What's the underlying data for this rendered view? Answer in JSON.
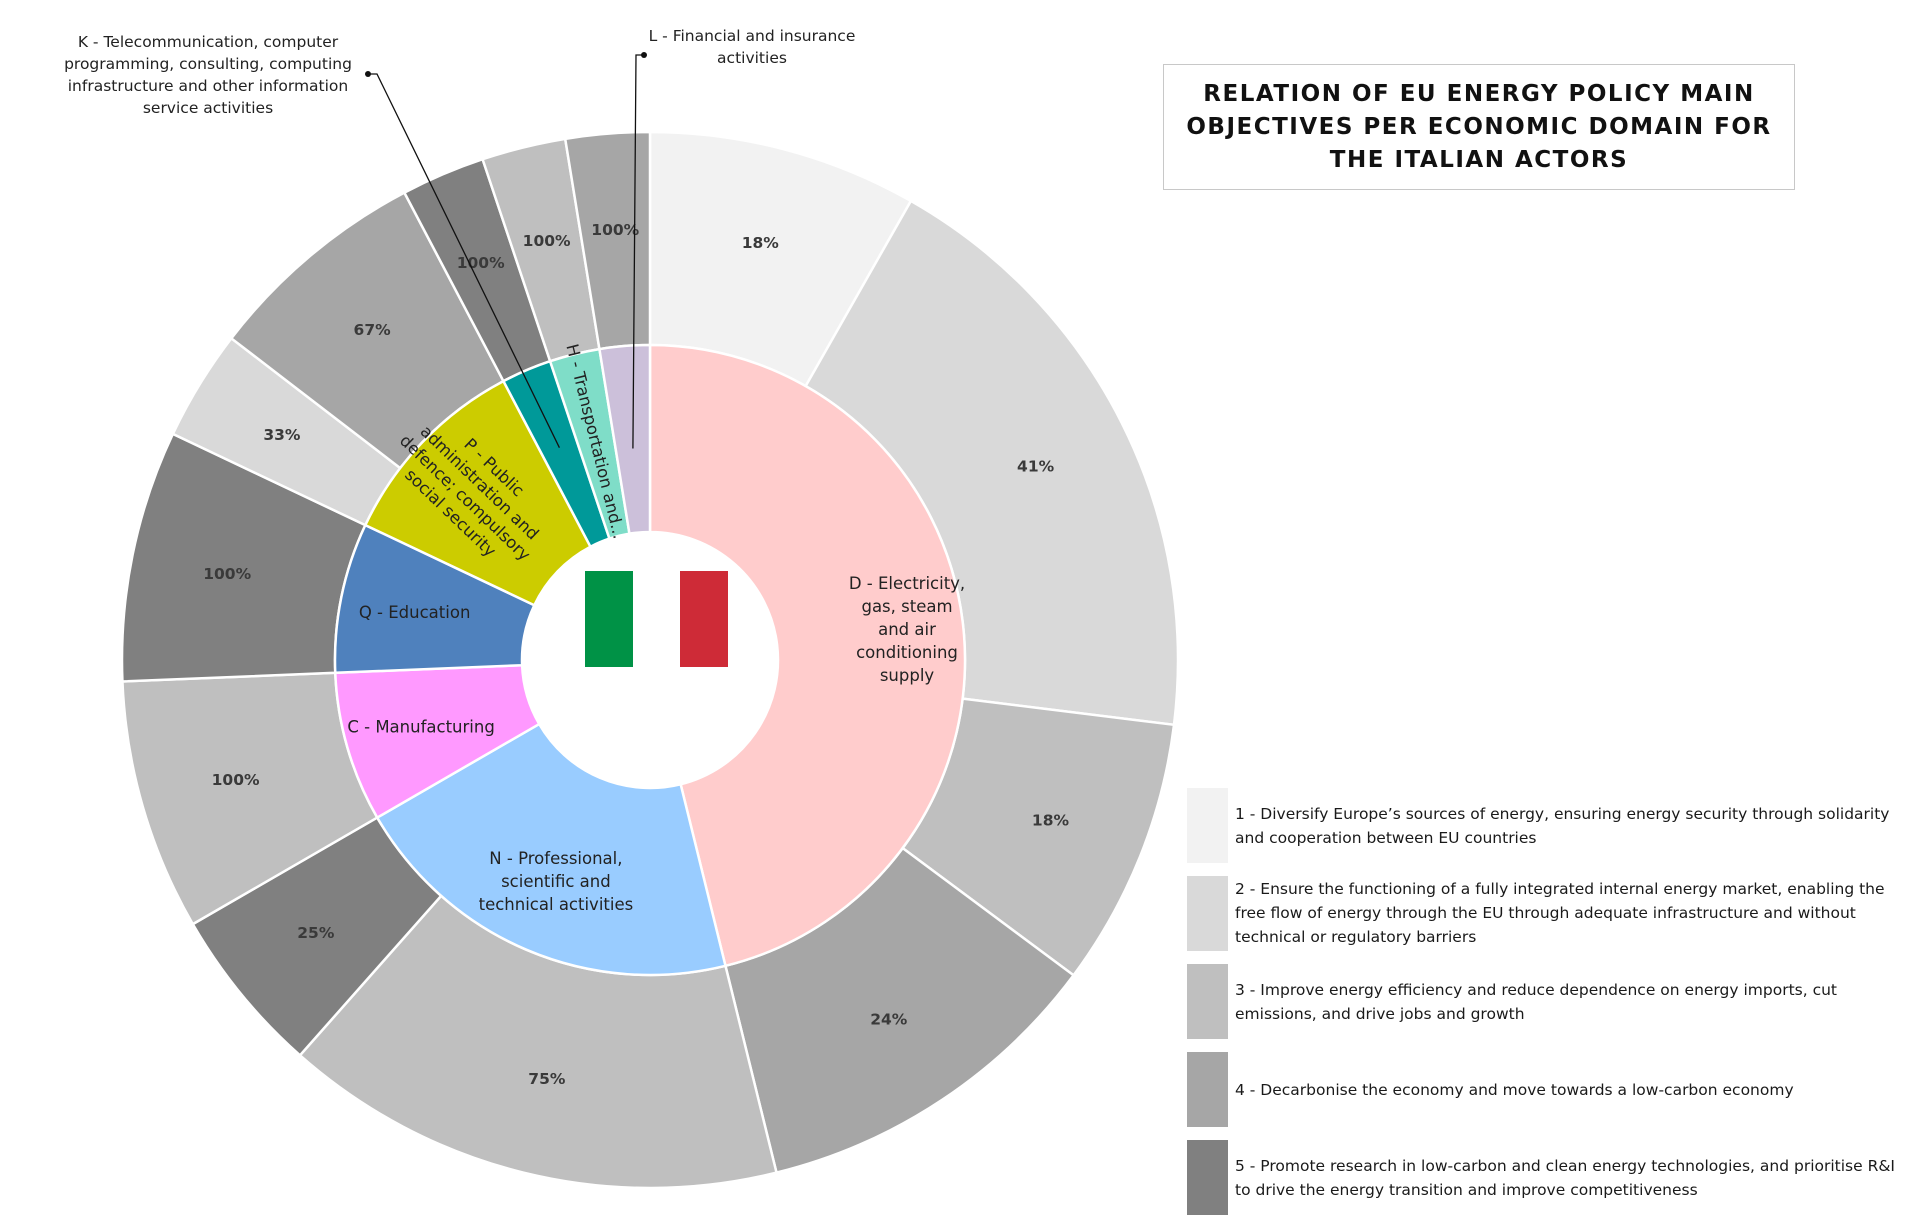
{
  "chart_data": {
    "type": "pie",
    "title": "RELATION OF EU ENERGY POLICY MAIN\nOBJECTIVES PER ECONOMIC DOMAIN FOR\nTHE ITALIAN ACTORS",
    "inner_ring": [
      {
        "key": "D",
        "label": "D - Electricity,\ngas, steam\nand air\nconditioning\nsupply",
        "share": 0.4045,
        "color": "#FFCCCC"
      },
      {
        "key": "N",
        "label": "N - Professional,\nscientific and\ntechnical activities",
        "share": 0.1798,
        "color": "#99CCFF"
      },
      {
        "key": "C",
        "label": "C - Manufacturing",
        "share": 0.0674,
        "color": "#FF99FF"
      },
      {
        "key": "Q",
        "label": "Q - Education",
        "share": 0.0674,
        "color": "#4F81BD"
      },
      {
        "key": "P",
        "label": "P - Public\nadministration and\ndefence; compulsory\nsocial security",
        "share": 0.0899,
        "color": "#CCCC00"
      },
      {
        "key": "K",
        "label": "K - Telecommunication, computer\nprogramming, consulting, computing\ninfrastructure and other information\nservice activities",
        "share": 0.0225,
        "color": "#009999"
      },
      {
        "key": "H",
        "label": "H - Transportation and...",
        "share": 0.0225,
        "color": "#7FDDC8"
      },
      {
        "key": "L",
        "label": "L - Financial and insurance\nactivities",
        "share": 0.0225,
        "color": "#CCC0DA"
      }
    ],
    "outer_ring": [
      {
        "domain": "D",
        "objective": 1,
        "label": "18%",
        "value": 18
      },
      {
        "domain": "D",
        "objective": 2,
        "label": "41%",
        "value": 41
      },
      {
        "domain": "D",
        "objective": 3,
        "label": "18%",
        "value": 18
      },
      {
        "domain": "D",
        "objective": 4,
        "label": "24%",
        "value": 24
      },
      {
        "domain": "N",
        "objective": 3,
        "label": "75%",
        "value": 75
      },
      {
        "domain": "N",
        "objective": 5,
        "label": "25%",
        "value": 25
      },
      {
        "domain": "C",
        "objective": 3,
        "label": "100%",
        "value": 100
      },
      {
        "domain": "Q",
        "objective": 5,
        "label": "100%",
        "value": 100
      },
      {
        "domain": "P",
        "objective": 2,
        "label": "33%",
        "value": 33
      },
      {
        "domain": "P",
        "objective": 4,
        "label": "67%",
        "value": 67
      },
      {
        "domain": "K",
        "objective": 5,
        "label": "100%",
        "value": 100
      },
      {
        "domain": "H",
        "objective": 3,
        "label": "100%",
        "value": 100
      },
      {
        "domain": "L",
        "objective": 4,
        "label": "100%",
        "value": 100
      }
    ],
    "legend": [
      {
        "objective": 1,
        "text": "1 - Diversify Europe’s sources of energy, ensuring energy security through solidarity and cooperation between EU countries",
        "color": "#F2F2F2"
      },
      {
        "objective": 2,
        "text": "2 - Ensure the functioning of a fully integrated internal energy market, enabling the free flow of energy through the EU through adequate infrastructure and without technical or regulatory barriers",
        "color": "#D9D9D9"
      },
      {
        "objective": 3,
        "text": "3 - Improve energy efficiency and reduce dependence on energy imports, cut emissions, and drive jobs and growth",
        "color": "#BFBFBF"
      },
      {
        "objective": 4,
        "text": "4 - Decarbonise the economy and move towards a low-carbon economy",
        "color": "#A6A6A6"
      },
      {
        "objective": 5,
        "text": "5 - Promote research in low-carbon and clean energy technologies, and prioritise R&I to drive the energy transition and improve competitiveness",
        "color": "#808080"
      }
    ],
    "center_image": "italy-flag",
    "flag_colors": [
      "#009246",
      "#FFFFFF",
      "#CE2B37"
    ],
    "legend_position": "bottom-right"
  }
}
